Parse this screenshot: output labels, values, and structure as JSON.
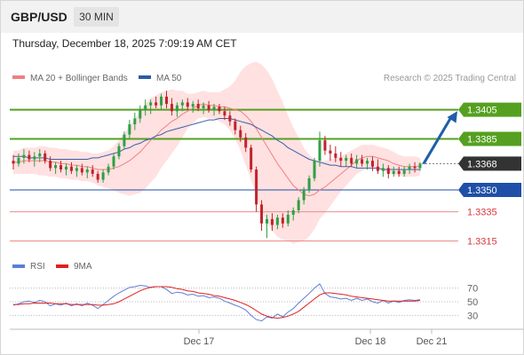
{
  "header": {
    "symbol": "GBP/USD",
    "interval": "30 MIN"
  },
  "timestamp": "Thursday, December 18, 2025 7:09:19 AM CET",
  "legend": {
    "ma20": {
      "label": "MA 20 + Bollinger Bands",
      "color": "#f08080"
    },
    "ma50": {
      "label": "MA 50",
      "color": "#2a5caa"
    },
    "credit": "Research © 2025 Trading Central"
  },
  "rsi_legend": {
    "rsi": {
      "label": "RSI",
      "color": "#5b7fd6"
    },
    "ma9": {
      "label": "9MA",
      "color": "#e02020"
    }
  },
  "price_levels": [
    {
      "label": "1.3405",
      "value": 1.3405,
      "style": "resistance"
    },
    {
      "label": "1.3385",
      "value": 1.3385,
      "style": "resistance"
    },
    {
      "label": "1.3368",
      "value": 1.3368,
      "style": "current"
    },
    {
      "label": "1.3350",
      "value": 1.335,
      "style": "pivot"
    },
    {
      "label": "1.3335",
      "value": 1.3335,
      "style": "support"
    },
    {
      "label": "1.3315",
      "value": 1.3315,
      "style": "support"
    }
  ],
  "rsi_ticks": [
    "70",
    "50",
    "30"
  ],
  "x_ticks": [
    "Dec 17",
    "Dec 18",
    "Dec 21"
  ],
  "colors": {
    "up": "#2ea043",
    "down": "#c0232b",
    "band": "#ffdcdc",
    "resistance": "#55a020",
    "pivot": "#1f4fa8",
    "support": "#ec8b8b",
    "current": "#333333",
    "arrow": "#1f5ea8"
  },
  "chart_data": [
    {
      "type": "candlestick",
      "title": "GBP/USD 30 MIN",
      "x_ticks": [
        "Dec 17",
        "Dec 18",
        "Dec 21"
      ],
      "ylim": [
        1.3308,
        1.342
      ],
      "ohlc": [
        [
          1.337,
          1.3374,
          1.3364,
          1.3368
        ],
        [
          1.3368,
          1.3375,
          1.3366,
          1.3372
        ],
        [
          1.3372,
          1.3378,
          1.3368,
          1.3374
        ],
        [
          1.3374,
          1.3377,
          1.3369,
          1.3371
        ],
        [
          1.3371,
          1.3376,
          1.3366,
          1.3373
        ],
        [
          1.3373,
          1.3378,
          1.3369,
          1.3375
        ],
        [
          1.3375,
          1.3377,
          1.3368,
          1.337
        ],
        [
          1.337,
          1.3373,
          1.3363,
          1.3365
        ],
        [
          1.3365,
          1.3369,
          1.3361,
          1.3367
        ],
        [
          1.3367,
          1.337,
          1.3362,
          1.3364
        ],
        [
          1.3364,
          1.3368,
          1.336,
          1.3366
        ],
        [
          1.3366,
          1.3369,
          1.3361,
          1.3363
        ],
        [
          1.3363,
          1.3367,
          1.3359,
          1.3365
        ],
        [
          1.3365,
          1.3368,
          1.336,
          1.3362
        ],
        [
          1.3362,
          1.3366,
          1.3358,
          1.3364
        ],
        [
          1.3364,
          1.3367,
          1.3359,
          1.3361
        ],
        [
          1.3361,
          1.3363,
          1.3355,
          1.3357
        ],
        [
          1.3357,
          1.3364,
          1.3355,
          1.3362
        ],
        [
          1.3362,
          1.3368,
          1.336,
          1.3366
        ],
        [
          1.3366,
          1.3375,
          1.3364,
          1.3373
        ],
        [
          1.3373,
          1.3382,
          1.3371,
          1.338
        ],
        [
          1.338,
          1.339,
          1.3378,
          1.3388
        ],
        [
          1.3388,
          1.3398,
          1.3385,
          1.3395
        ],
        [
          1.3395,
          1.3403,
          1.3391,
          1.3399
        ],
        [
          1.3399,
          1.3408,
          1.3396,
          1.3405
        ],
        [
          1.3405,
          1.3412,
          1.3401,
          1.3408
        ],
        [
          1.3408,
          1.3412,
          1.3402,
          1.341
        ],
        [
          1.341,
          1.3414,
          1.3406,
          1.3408
        ],
        [
          1.3408,
          1.3416,
          1.3405,
          1.3414
        ],
        [
          1.3414,
          1.3418,
          1.3406,
          1.3409
        ],
        [
          1.3409,
          1.3413,
          1.3401,
          1.3404
        ],
        [
          1.3404,
          1.341,
          1.34,
          1.3408
        ],
        [
          1.3408,
          1.3412,
          1.3404,
          1.341
        ],
        [
          1.341,
          1.3413,
          1.3405,
          1.3407
        ],
        [
          1.3407,
          1.3411,
          1.3403,
          1.3409
        ],
        [
          1.3409,
          1.3412,
          1.3404,
          1.3406
        ],
        [
          1.3406,
          1.341,
          1.3402,
          1.3408
        ],
        [
          1.3408,
          1.3411,
          1.3403,
          1.3405
        ],
        [
          1.3405,
          1.3409,
          1.3401,
          1.3407
        ],
        [
          1.3407,
          1.3409,
          1.3402,
          1.3404
        ],
        [
          1.3404,
          1.3407,
          1.3398,
          1.3401
        ],
        [
          1.3401,
          1.3404,
          1.3394,
          1.3397
        ],
        [
          1.3397,
          1.3399,
          1.3388,
          1.3391
        ],
        [
          1.3391,
          1.3394,
          1.3383,
          1.3386
        ],
        [
          1.3386,
          1.3389,
          1.3376,
          1.3379
        ],
        [
          1.3379,
          1.3381,
          1.3362,
          1.3364
        ],
        [
          1.3364,
          1.3366,
          1.3335,
          1.334
        ],
        [
          1.334,
          1.3343,
          1.3322,
          1.3327
        ],
        [
          1.3327,
          1.3333,
          1.3317,
          1.333
        ],
        [
          1.333,
          1.3334,
          1.3322,
          1.3326
        ],
        [
          1.3326,
          1.3333,
          1.3323,
          1.3331
        ],
        [
          1.3331,
          1.3334,
          1.3324,
          1.3327
        ],
        [
          1.3327,
          1.3336,
          1.3325,
          1.3333
        ],
        [
          1.3333,
          1.3338,
          1.3329,
          1.3336
        ],
        [
          1.3336,
          1.3345,
          1.3334,
          1.3343
        ],
        [
          1.3343,
          1.3352,
          1.334,
          1.335
        ],
        [
          1.335,
          1.336,
          1.3348,
          1.3358
        ],
        [
          1.3358,
          1.3372,
          1.3356,
          1.337
        ],
        [
          1.337,
          1.339,
          1.3366,
          1.3384
        ],
        [
          1.3384,
          1.3387,
          1.3374,
          1.3377
        ],
        [
          1.3377,
          1.3381,
          1.337,
          1.3375
        ],
        [
          1.3375,
          1.338,
          1.3369,
          1.3372
        ],
        [
          1.3372,
          1.3376,
          1.3366,
          1.337
        ],
        [
          1.337,
          1.3374,
          1.3366,
          1.3372
        ],
        [
          1.3372,
          1.3375,
          1.3366,
          1.3368
        ],
        [
          1.3368,
          1.3374,
          1.3365,
          1.3371
        ],
        [
          1.3371,
          1.3374,
          1.3366,
          1.3368
        ],
        [
          1.3368,
          1.3372,
          1.3364,
          1.337
        ],
        [
          1.337,
          1.3373,
          1.3363,
          1.3366
        ],
        [
          1.3366,
          1.3371,
          1.3361,
          1.3363
        ],
        [
          1.3363,
          1.3368,
          1.3359,
          1.3365
        ],
        [
          1.3365,
          1.3367,
          1.3358,
          1.3361
        ],
        [
          1.3361,
          1.3366,
          1.3359,
          1.3363
        ],
        [
          1.3363,
          1.3366,
          1.3359,
          1.3361
        ],
        [
          1.3361,
          1.3366,
          1.3359,
          1.3364
        ],
        [
          1.3364,
          1.3368,
          1.3361,
          1.3366
        ],
        [
          1.3366,
          1.3369,
          1.3362,
          1.3365
        ],
        [
          1.3365,
          1.3369,
          1.3363,
          1.3368
        ]
      ],
      "ma20": [
        1.3369,
        1.3369,
        1.337,
        1.337,
        1.337,
        1.337,
        1.337,
        1.3369,
        1.3369,
        1.3368,
        1.3368,
        1.3367,
        1.3367,
        1.3366,
        1.3366,
        1.3365,
        1.3364,
        1.3364,
        1.3364,
        1.3365,
        1.3366,
        1.3368,
        1.337,
        1.3373,
        1.3376,
        1.338,
        1.3384,
        1.3387,
        1.3391,
        1.3394,
        1.3397,
        1.3399,
        1.3402,
        1.3404,
        1.3406,
        1.3408,
        1.3409,
        1.3408,
        1.3408,
        1.3407,
        1.3407,
        1.3406,
        1.3405,
        1.3404,
        1.3401,
        1.3397,
        1.3392,
        1.3386,
        1.338,
        1.3374,
        1.3368,
        1.3363,
        1.3358,
        1.3353,
        1.335,
        1.3347,
        1.3346,
        1.3347,
        1.335,
        1.3352,
        1.3355,
        1.3358,
        1.3361,
        1.3364,
        1.3367,
        1.337,
        1.3372,
        1.3373,
        1.3373,
        1.3372,
        1.3371,
        1.337,
        1.3368,
        1.3367,
        1.3366,
        1.3366,
        1.3366,
        1.3366
      ],
      "ma50": [
        1.3373,
        1.3373,
        1.3373,
        1.3372,
        1.3372,
        1.3372,
        1.3372,
        1.3371,
        1.3371,
        1.3371,
        1.3371,
        1.3371,
        1.3371,
        1.3371,
        1.3371,
        1.3372,
        1.3372,
        1.3373,
        1.3374,
        1.3375,
        1.3376,
        1.3378,
        1.3379,
        1.3381,
        1.3382,
        1.3384,
        1.3385,
        1.3387,
        1.3388,
        1.339,
        1.3391,
        1.3392,
        1.3393,
        1.3394,
        1.3395,
        1.3396,
        1.3397,
        1.3398,
        1.3398,
        1.3399,
        1.3399,
        1.3399,
        1.3398,
        1.3397,
        1.3396,
        1.3395,
        1.3393,
        1.3391,
        1.3389,
        1.3387,
        1.3384,
        1.3382,
        1.3379,
        1.3377,
        1.3375,
        1.3373,
        1.3371,
        1.337,
        1.3369,
        1.3368,
        1.3367,
        1.3367,
        1.3366,
        1.3366,
        1.3366,
        1.3365,
        1.3365,
        1.3365,
        1.3365,
        1.3365,
        1.3364,
        1.3364,
        1.3364,
        1.3364,
        1.3364,
        1.3364,
        1.3364,
        1.3364
      ],
      "bb_width": [
        0.0008,
        0.0008,
        0.0009,
        0.0009,
        0.0009,
        0.001,
        0.001,
        0.001,
        0.001,
        0.001,
        0.001,
        0.001,
        0.001,
        0.001,
        0.001,
        0.001,
        0.0011,
        0.0012,
        0.0013,
        0.0015,
        0.0018,
        0.0021,
        0.0024,
        0.0026,
        0.0028,
        0.0029,
        0.0029,
        0.0028,
        0.0026,
        0.0024,
        0.0022,
        0.0019,
        0.0016,
        0.0012,
        0.001,
        0.0009,
        0.0009,
        0.0009,
        0.0009,
        0.001,
        0.0012,
        0.0015,
        0.002,
        0.0027,
        0.0034,
        0.004,
        0.0046,
        0.005,
        0.0052,
        0.0052,
        0.005,
        0.0047,
        0.0043,
        0.004,
        0.0036,
        0.0032,
        0.0028,
        0.0024,
        0.002,
        0.0018,
        0.0016,
        0.0014,
        0.0012,
        0.0011,
        0.001,
        0.0009,
        0.0009,
        0.0008,
        0.0008,
        0.0008,
        0.0008,
        0.0008,
        0.0008,
        0.0007,
        0.0007,
        0.0007,
        0.0007,
        0.0006
      ]
    },
    {
      "type": "line",
      "title": "RSI",
      "ylim": [
        15,
        85
      ],
      "y_ticks": [
        70,
        50,
        30
      ],
      "series": [
        {
          "name": "RSI",
          "values": [
            45,
            47,
            50,
            51,
            49,
            52,
            50,
            44,
            47,
            45,
            48,
            44,
            47,
            44,
            48,
            45,
            40,
            46,
            52,
            58,
            63,
            67,
            71,
            72,
            74,
            73,
            71,
            72,
            72,
            68,
            62,
            64,
            63,
            60,
            61,
            58,
            59,
            56,
            57,
            55,
            51,
            48,
            45,
            42,
            38,
            30,
            24,
            22,
            28,
            26,
            32,
            28,
            35,
            40,
            48,
            55,
            62,
            70,
            76,
            62,
            57,
            56,
            54,
            55,
            52,
            55,
            52,
            54,
            50,
            48,
            52,
            48,
            51,
            49,
            52,
            53,
            52,
            53
          ]
        },
        {
          "name": "9MA",
          "values": [
            46,
            46,
            47,
            47,
            48,
            48,
            48,
            48,
            47,
            47,
            47,
            46,
            46,
            46,
            46,
            46,
            45,
            45,
            46,
            47,
            50,
            54,
            58,
            62,
            66,
            69,
            71,
            72,
            72,
            72,
            71,
            69,
            68,
            66,
            65,
            63,
            62,
            61,
            59,
            58,
            56,
            54,
            52,
            49,
            46,
            42,
            37,
            32,
            29,
            27,
            26,
            27,
            29,
            32,
            36,
            42,
            48,
            54,
            60,
            63,
            63,
            62,
            61,
            60,
            58,
            57,
            56,
            55,
            54,
            53,
            52,
            51,
            51,
            51,
            51,
            51,
            51,
            52
          ]
        }
      ]
    }
  ]
}
